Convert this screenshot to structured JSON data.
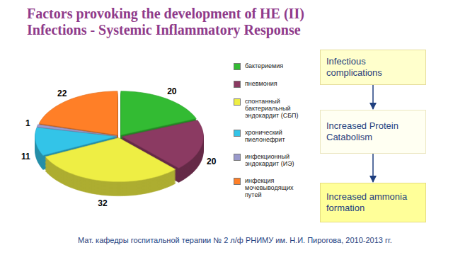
{
  "chart_data": {
    "type": "pie",
    "title": "Factors provoking the development of HE (II)",
    "subtitle": "Infections - Systemic Inflammatory Response",
    "categories": [
      "бактериемия",
      "пневмония",
      "спонтанный бактериальный эндокардит (СБП)",
      "хронический пиелонефрит",
      "инфекционный эндокардит (ИЭ)",
      "инфекция мочевыводящих путей"
    ],
    "values": [
      20,
      20,
      32,
      11,
      1,
      22
    ],
    "colors": [
      "#33bb33",
      "#8b3a62",
      "#eeee44",
      "#33c4e8",
      "#9a9acc",
      "#ff7f27"
    ],
    "data_labels": true,
    "legend": "right"
  },
  "diagram": {
    "nodes": [
      {
        "label": "Infectious complications"
      },
      {
        "label": "Increased Protein Catabolism"
      },
      {
        "label": "Increased ammonia formation"
      }
    ]
  },
  "caption": "Мат. кафедры госпитальной терапии № 2 л/ф РНИМУ им. Н.И. Пирогова, 2010-2013 гг."
}
